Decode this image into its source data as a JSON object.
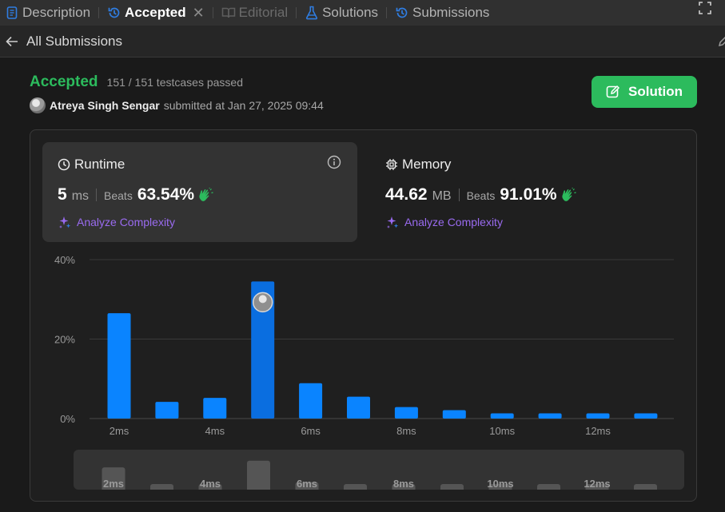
{
  "tabs": [
    {
      "label": "Description",
      "icon": "description-icon",
      "state": "normal"
    },
    {
      "label": "Accepted",
      "icon": "history-icon",
      "state": "active"
    },
    {
      "label": "Editorial",
      "icon": "book-icon",
      "state": "disabled"
    },
    {
      "label": "Solutions",
      "icon": "flask-icon",
      "state": "normal"
    },
    {
      "label": "Submissions",
      "icon": "history-icon",
      "state": "normal"
    }
  ],
  "subbar": {
    "back_label": "All Submissions"
  },
  "submission": {
    "status": "Accepted",
    "testcases": "151 / 151 testcases passed",
    "author": "Atreya Singh Sengar",
    "submitted_text": "submitted at Jan 27, 2025 09:44",
    "solution_label": "Solution"
  },
  "runtime": {
    "title": "Runtime",
    "value": "5",
    "unit": "ms",
    "beats_label": "Beats",
    "beats": "63.54%",
    "analyze": "Analyze Complexity"
  },
  "memory": {
    "title": "Memory",
    "value": "44.62",
    "unit": "MB",
    "beats_label": "Beats",
    "beats": "91.01%",
    "analyze": "Analyze Complexity"
  },
  "colors": {
    "accent_green": "#2cbb5d",
    "bar_blue": "#0a84ff",
    "bar_selected": "#0a6ee0",
    "analyze_purple": "#9a6bf0"
  },
  "chart_data": {
    "type": "bar",
    "y_ticks": [
      "40%",
      "20%",
      "0%"
    ],
    "ylim": [
      0,
      40
    ],
    "x_tick_labels": [
      "2ms",
      "4ms",
      "6ms",
      "8ms",
      "10ms",
      "12ms"
    ],
    "x": [
      2,
      3,
      4,
      5,
      6,
      7,
      8,
      9,
      10,
      11,
      12,
      13
    ],
    "values": [
      26.5,
      4.2,
      5.2,
      34.5,
      8.9,
      5.5,
      2.9,
      2.1,
      1.3,
      1.3,
      1.3,
      1.3
    ],
    "selected_x": 5,
    "grid": true,
    "overview_values": [
      26.5,
      4.2,
      5.2,
      34.5,
      8.9,
      5.5,
      2.9,
      2.1,
      1.3,
      1.3,
      1.3,
      1.3
    ]
  }
}
